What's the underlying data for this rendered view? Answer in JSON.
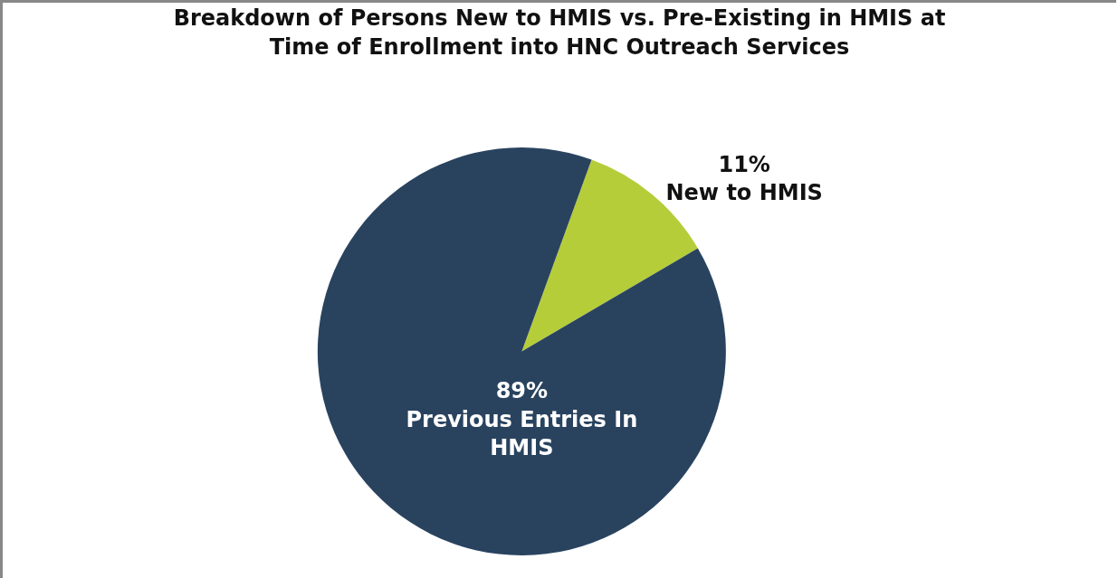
{
  "chart_data": {
    "type": "pie",
    "title": "Breakdown of Persons New to HMIS vs. Pre-Existing in HMIS at Time of Enrollment into HNC Outreach Services",
    "categories": [
      "New to HMIS",
      "Previous Entries In HMIS"
    ],
    "values": [
      11,
      89
    ],
    "value_labels": [
      "11%",
      "89%"
    ],
    "colors": [
      "#b5cd39",
      "#29435f"
    ],
    "legend": false
  }
}
